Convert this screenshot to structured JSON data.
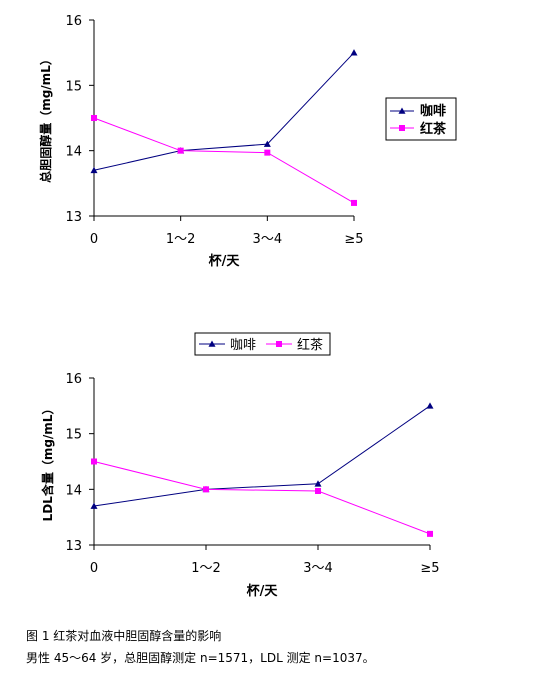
{
  "chart_data": [
    {
      "type": "line",
      "categories": [
        "0",
        "1～2",
        "3～4",
        "≥5"
      ],
      "xlabel": "杯/天",
      "ylabel": "总胆固醇量（mg/mL）",
      "ylim": [
        13,
        16
      ],
      "yticks": [
        "13",
        "14",
        "15",
        "16"
      ],
      "grid": false,
      "legend_placement": "right",
      "series": [
        {
          "name": "咖啡",
          "color": "#000080",
          "marker": "triangle",
          "values": [
            13.7,
            14.0,
            14.1,
            15.5
          ]
        },
        {
          "name": "红茶",
          "color": "#FF00FF",
          "marker": "square",
          "values": [
            14.5,
            14.0,
            13.97,
            13.2
          ]
        }
      ]
    },
    {
      "type": "line",
      "categories": [
        "0",
        "1～2",
        "3～4",
        "≥5"
      ],
      "xlabel": "杯/天",
      "ylabel": "LDL含量（mg/mL）",
      "ylim": [
        13,
        16
      ],
      "yticks": [
        "13",
        "14",
        "15",
        "16"
      ],
      "grid": false,
      "legend_placement": "top",
      "series": [
        {
          "name": "咖啡",
          "color": "#000080",
          "marker": "triangle",
          "values": [
            13.7,
            14.0,
            14.1,
            15.5
          ]
        },
        {
          "name": "红茶",
          "color": "#FF00FF",
          "marker": "square",
          "values": [
            14.5,
            14.0,
            13.97,
            13.2
          ]
        }
      ]
    }
  ],
  "caption": {
    "line1": "图 1 红茶对血液中胆固醇含量的影响",
    "line2": "男性 45～64 岁，总胆固醇测定 n=1571，LDL 测定 n=1037。"
  }
}
